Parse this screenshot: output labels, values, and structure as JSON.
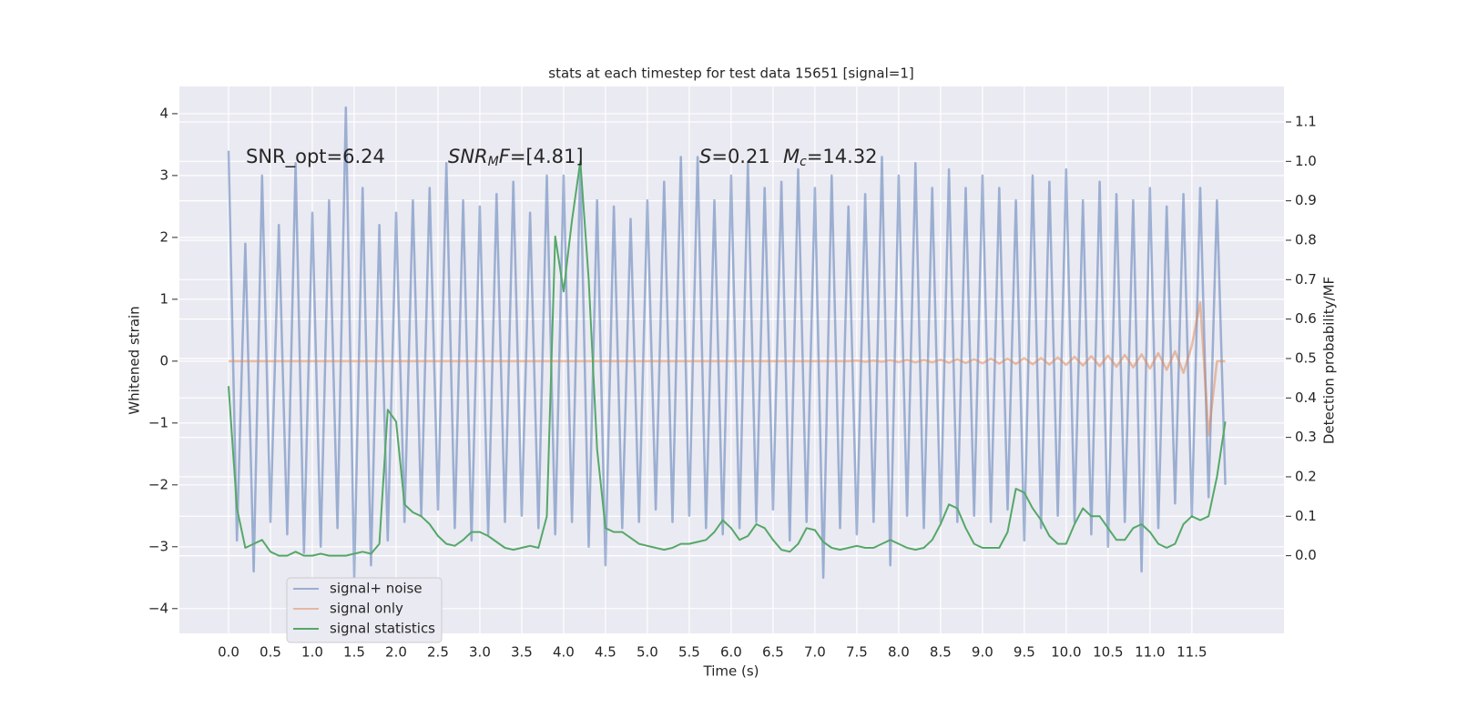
{
  "chart_data": {
    "type": "line",
    "title": "stats at each timestep for test data 15651 [signal=1]",
    "xlabel": "Time (s)",
    "ylabel": "Whitened strain",
    "y2label": "Detection probability/MF",
    "annotations": [
      {
        "text": "SNR_opt=6.24",
        "math": false
      },
      {
        "text": "SNR_MF=[4.81]",
        "math": true
      },
      {
        "text": "S=0.21",
        "math": true
      },
      {
        "text": "M_c=14.32",
        "math": true
      }
    ],
    "legend": "lower left",
    "grid": true,
    "xlim": [
      -0.587,
      12.6
    ],
    "ylim": [
      -4.4,
      4.44
    ],
    "y2lim": [
      -0.197,
      1.19
    ],
    "xticks": [
      {
        "value": 0,
        "label": "0.0"
      },
      {
        "value": 0.5,
        "label": "0.5"
      },
      {
        "value": 1,
        "label": "1.0"
      },
      {
        "value": 1.5,
        "label": "1.5"
      },
      {
        "value": 2,
        "label": "2.0"
      },
      {
        "value": 2.5,
        "label": "2.5"
      },
      {
        "value": 3,
        "label": "3.0"
      },
      {
        "value": 3.5,
        "label": "3.5"
      },
      {
        "value": 4,
        "label": "4.0"
      },
      {
        "value": 4.5,
        "label": "4.5"
      },
      {
        "value": 5,
        "label": "5.0"
      },
      {
        "value": 5.5,
        "label": "5.5"
      },
      {
        "value": 6,
        "label": "6.0"
      },
      {
        "value": 6.5,
        "label": "6.5"
      },
      {
        "value": 7,
        "label": "7.0"
      },
      {
        "value": 7.5,
        "label": "7.5"
      },
      {
        "value": 8,
        "label": "8.0"
      },
      {
        "value": 8.5,
        "label": "8.5"
      },
      {
        "value": 9,
        "label": "9.0"
      },
      {
        "value": 9.5,
        "label": "9.5"
      },
      {
        "value": 10,
        "label": "10.0"
      },
      {
        "value": 10.5,
        "label": "10.5"
      },
      {
        "value": 11,
        "label": "11.0"
      },
      {
        "value": 11.5,
        "label": "11.5"
      }
    ],
    "yticks": [
      {
        "value": -4,
        "label": "−4"
      },
      {
        "value": -3,
        "label": "−3"
      },
      {
        "value": -2,
        "label": "−2"
      },
      {
        "value": -1,
        "label": "−1"
      },
      0,
      1,
      2,
      3,
      4
    ],
    "y2ticks": [
      {
        "value": 0,
        "label": "0.0"
      },
      {
        "value": 0.1,
        "label": "0.1"
      },
      {
        "value": 0.2,
        "label": "0.2"
      },
      {
        "value": 0.3,
        "label": "0.3"
      },
      {
        "value": 0.4,
        "label": "0.4"
      },
      {
        "value": 0.5,
        "label": "0.5"
      },
      {
        "value": 0.6,
        "label": "0.6"
      },
      {
        "value": 0.7,
        "label": "0.7"
      },
      {
        "value": 0.8,
        "label": "0.8"
      },
      {
        "value": 0.9,
        "label": "0.9"
      },
      {
        "value": 1,
        "label": "1.0"
      },
      {
        "value": 1.1,
        "label": "1.1"
      }
    ],
    "x": [
      0,
      0.1,
      0.2,
      0.3,
      0.4,
      0.5,
      0.6,
      0.7,
      0.8,
      0.9,
      1,
      1.1,
      1.2,
      1.3,
      1.4,
      1.5,
      1.6,
      1.7,
      1.8,
      1.9,
      2,
      2.1,
      2.2,
      2.3,
      2.4,
      2.5,
      2.6,
      2.7,
      2.8,
      2.9,
      3,
      3.1,
      3.2,
      3.3,
      3.4,
      3.5,
      3.6,
      3.7,
      3.8,
      3.9,
      4,
      4.1,
      4.2,
      4.3,
      4.4,
      4.5,
      4.6,
      4.7,
      4.8,
      4.9,
      5,
      5.1,
      5.2,
      5.3,
      5.4,
      5.5,
      5.6,
      5.7,
      5.8,
      5.9,
      6,
      6.1,
      6.2,
      6.3,
      6.4,
      6.5,
      6.6,
      6.7,
      6.8,
      6.9,
      7,
      7.1,
      7.2,
      7.3,
      7.4,
      7.5,
      7.6,
      7.7,
      7.8,
      7.9,
      8,
      8.1,
      8.2,
      8.3,
      8.4,
      8.5,
      8.6,
      8.7,
      8.8,
      8.9,
      9,
      9.1,
      9.2,
      9.3,
      9.4,
      9.5,
      9.6,
      9.7,
      9.8,
      9.9,
      10,
      10.1,
      10.2,
      10.3,
      10.4,
      10.5,
      10.6,
      10.7,
      10.8,
      10.9,
      11,
      11.1,
      11.2,
      11.3,
      11.4,
      11.5,
      11.6,
      11.7,
      11.8,
      11.9
    ],
    "series": [
      {
        "name": "signal+ noise",
        "color": "#4c72b0",
        "values": [
          3.4,
          -2.9,
          1.9,
          -3.4,
          3.0,
          -2.6,
          2.2,
          -2.8,
          3.2,
          -3.1,
          2.4,
          -3.0,
          2.6,
          -2.7,
          4.1,
          -3.5,
          2.8,
          -3.3,
          2.2,
          -2.9,
          2.4,
          -2.6,
          2.6,
          -2.5,
          2.8,
          -2.4,
          3.2,
          -2.7,
          2.6,
          -2.9,
          2.5,
          -2.8,
          2.7,
          -2.6,
          2.9,
          -2.5,
          2.4,
          -2.7,
          3.0,
          -2.8,
          3.0,
          -2.6,
          3.2,
          -3.0,
          2.6,
          -3.3,
          2.5,
          -2.7,
          2.3,
          -2.6,
          2.6,
          -2.4,
          2.9,
          -2.6,
          3.3,
          -2.5,
          3.3,
          -2.7,
          2.6,
          -2.8,
          3.0,
          -2.7,
          3.2,
          -2.6,
          2.8,
          -2.4,
          2.9,
          -2.9,
          3.1,
          -2.6,
          2.8,
          -3.5,
          3.0,
          -2.7,
          2.5,
          -2.8,
          2.7,
          -2.6,
          3.3,
          -3.3,
          3.0,
          -2.5,
          3.2,
          -2.7,
          2.8,
          -2.6,
          3.1,
          -2.6,
          2.8,
          -2.5,
          3.0,
          -2.6,
          2.8,
          -2.4,
          2.6,
          -2.9,
          3.0,
          -2.7,
          2.9,
          -2.5,
          3.1,
          -2.6,
          2.6,
          -2.8,
          2.9,
          -3.0,
          2.7,
          -2.6,
          2.6,
          -3.4,
          2.8,
          -2.7,
          2.5,
          -2.3,
          2.7,
          -2.5,
          2.8,
          -2.2,
          2.6,
          -2.0
        ]
      },
      {
        "name": "signal only",
        "color": "#dd8452",
        "values": [
          0,
          0,
          0,
          0,
          0,
          0,
          0,
          0,
          0,
          0,
          0,
          0,
          0,
          0,
          0,
          0,
          0,
          0,
          0,
          0,
          0,
          0,
          0,
          0,
          0,
          0,
          0,
          0,
          0,
          0,
          0,
          0,
          0,
          0,
          0,
          0,
          0,
          0,
          0,
          0,
          0,
          0,
          0,
          0,
          0,
          0,
          0,
          0,
          0,
          0,
          0,
          0,
          0,
          0,
          0,
          0,
          0,
          0,
          0,
          0,
          0,
          0,
          0,
          0,
          0,
          0,
          0,
          0,
          0,
          0,
          0,
          0,
          0,
          0,
          0,
          0.01,
          -0.01,
          0.01,
          -0.01,
          0.015,
          -0.015,
          0.02,
          -0.02,
          0.02,
          -0.02,
          0.025,
          -0.025,
          0.03,
          -0.03,
          0.03,
          -0.035,
          0.04,
          -0.04,
          0.04,
          -0.045,
          0.05,
          -0.05,
          0.05,
          -0.055,
          0.06,
          -0.06,
          0.07,
          -0.07,
          0.08,
          -0.08,
          0.09,
          -0.09,
          0.1,
          -0.1,
          0.11,
          -0.12,
          0.13,
          -0.14,
          0.16,
          -0.19,
          0.25,
          0.95,
          -1.2,
          0,
          0
        ]
      },
      {
        "name": "signal statistics",
        "color": "#55a868",
        "axis": "y2",
        "values": [
          0.43,
          0.12,
          0.02,
          0.03,
          0.04,
          0.01,
          0.0,
          0.0,
          0.01,
          0.0,
          0.0,
          0.005,
          0.0,
          0.0,
          0.0,
          0.005,
          0.01,
          0.005,
          0.03,
          0.37,
          0.34,
          0.13,
          0.11,
          0.1,
          0.08,
          0.05,
          0.03,
          0.025,
          0.04,
          0.06,
          0.06,
          0.05,
          0.035,
          0.02,
          0.015,
          0.02,
          0.025,
          0.02,
          0.1,
          0.81,
          0.67,
          0.85,
          1.0,
          0.7,
          0.27,
          0.07,
          0.06,
          0.06,
          0.045,
          0.03,
          0.025,
          0.02,
          0.015,
          0.02,
          0.03,
          0.03,
          0.035,
          0.04,
          0.06,
          0.09,
          0.07,
          0.04,
          0.05,
          0.08,
          0.07,
          0.04,
          0.015,
          0.01,
          0.03,
          0.07,
          0.065,
          0.035,
          0.02,
          0.015,
          0.02,
          0.025,
          0.02,
          0.02,
          0.03,
          0.04,
          0.03,
          0.02,
          0.015,
          0.02,
          0.04,
          0.08,
          0.13,
          0.12,
          0.07,
          0.03,
          0.02,
          0.02,
          0.02,
          0.06,
          0.17,
          0.16,
          0.12,
          0.09,
          0.05,
          0.03,
          0.03,
          0.08,
          0.12,
          0.1,
          0.1,
          0.07,
          0.04,
          0.04,
          0.07,
          0.08,
          0.06,
          0.03,
          0.02,
          0.03,
          0.08,
          0.1,
          0.09,
          0.1,
          0.2,
          0.34
        ]
      }
    ]
  }
}
